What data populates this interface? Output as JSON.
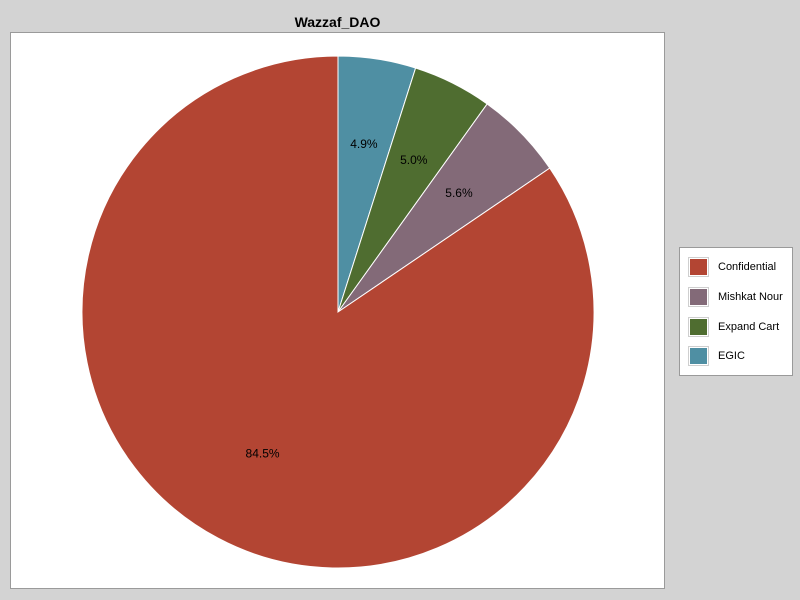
{
  "chart_data": {
    "type": "pie",
    "title": "Wazzaf_DAO",
    "legend_position": "right",
    "slices": [
      {
        "name": "Confidential",
        "value": 84.5,
        "label": "84.5%",
        "color": "#b34533"
      },
      {
        "name": "Mishkat Nour",
        "value": 5.6,
        "label": "5.6%",
        "color": "#836a78"
      },
      {
        "name": "Expand Cart",
        "value": 5.0,
        "label": "5.0%",
        "color": "#4f6d30"
      },
      {
        "name": "EGIC",
        "value": 4.9,
        "label": "4.9%",
        "color": "#4f8fa3"
      }
    ]
  }
}
